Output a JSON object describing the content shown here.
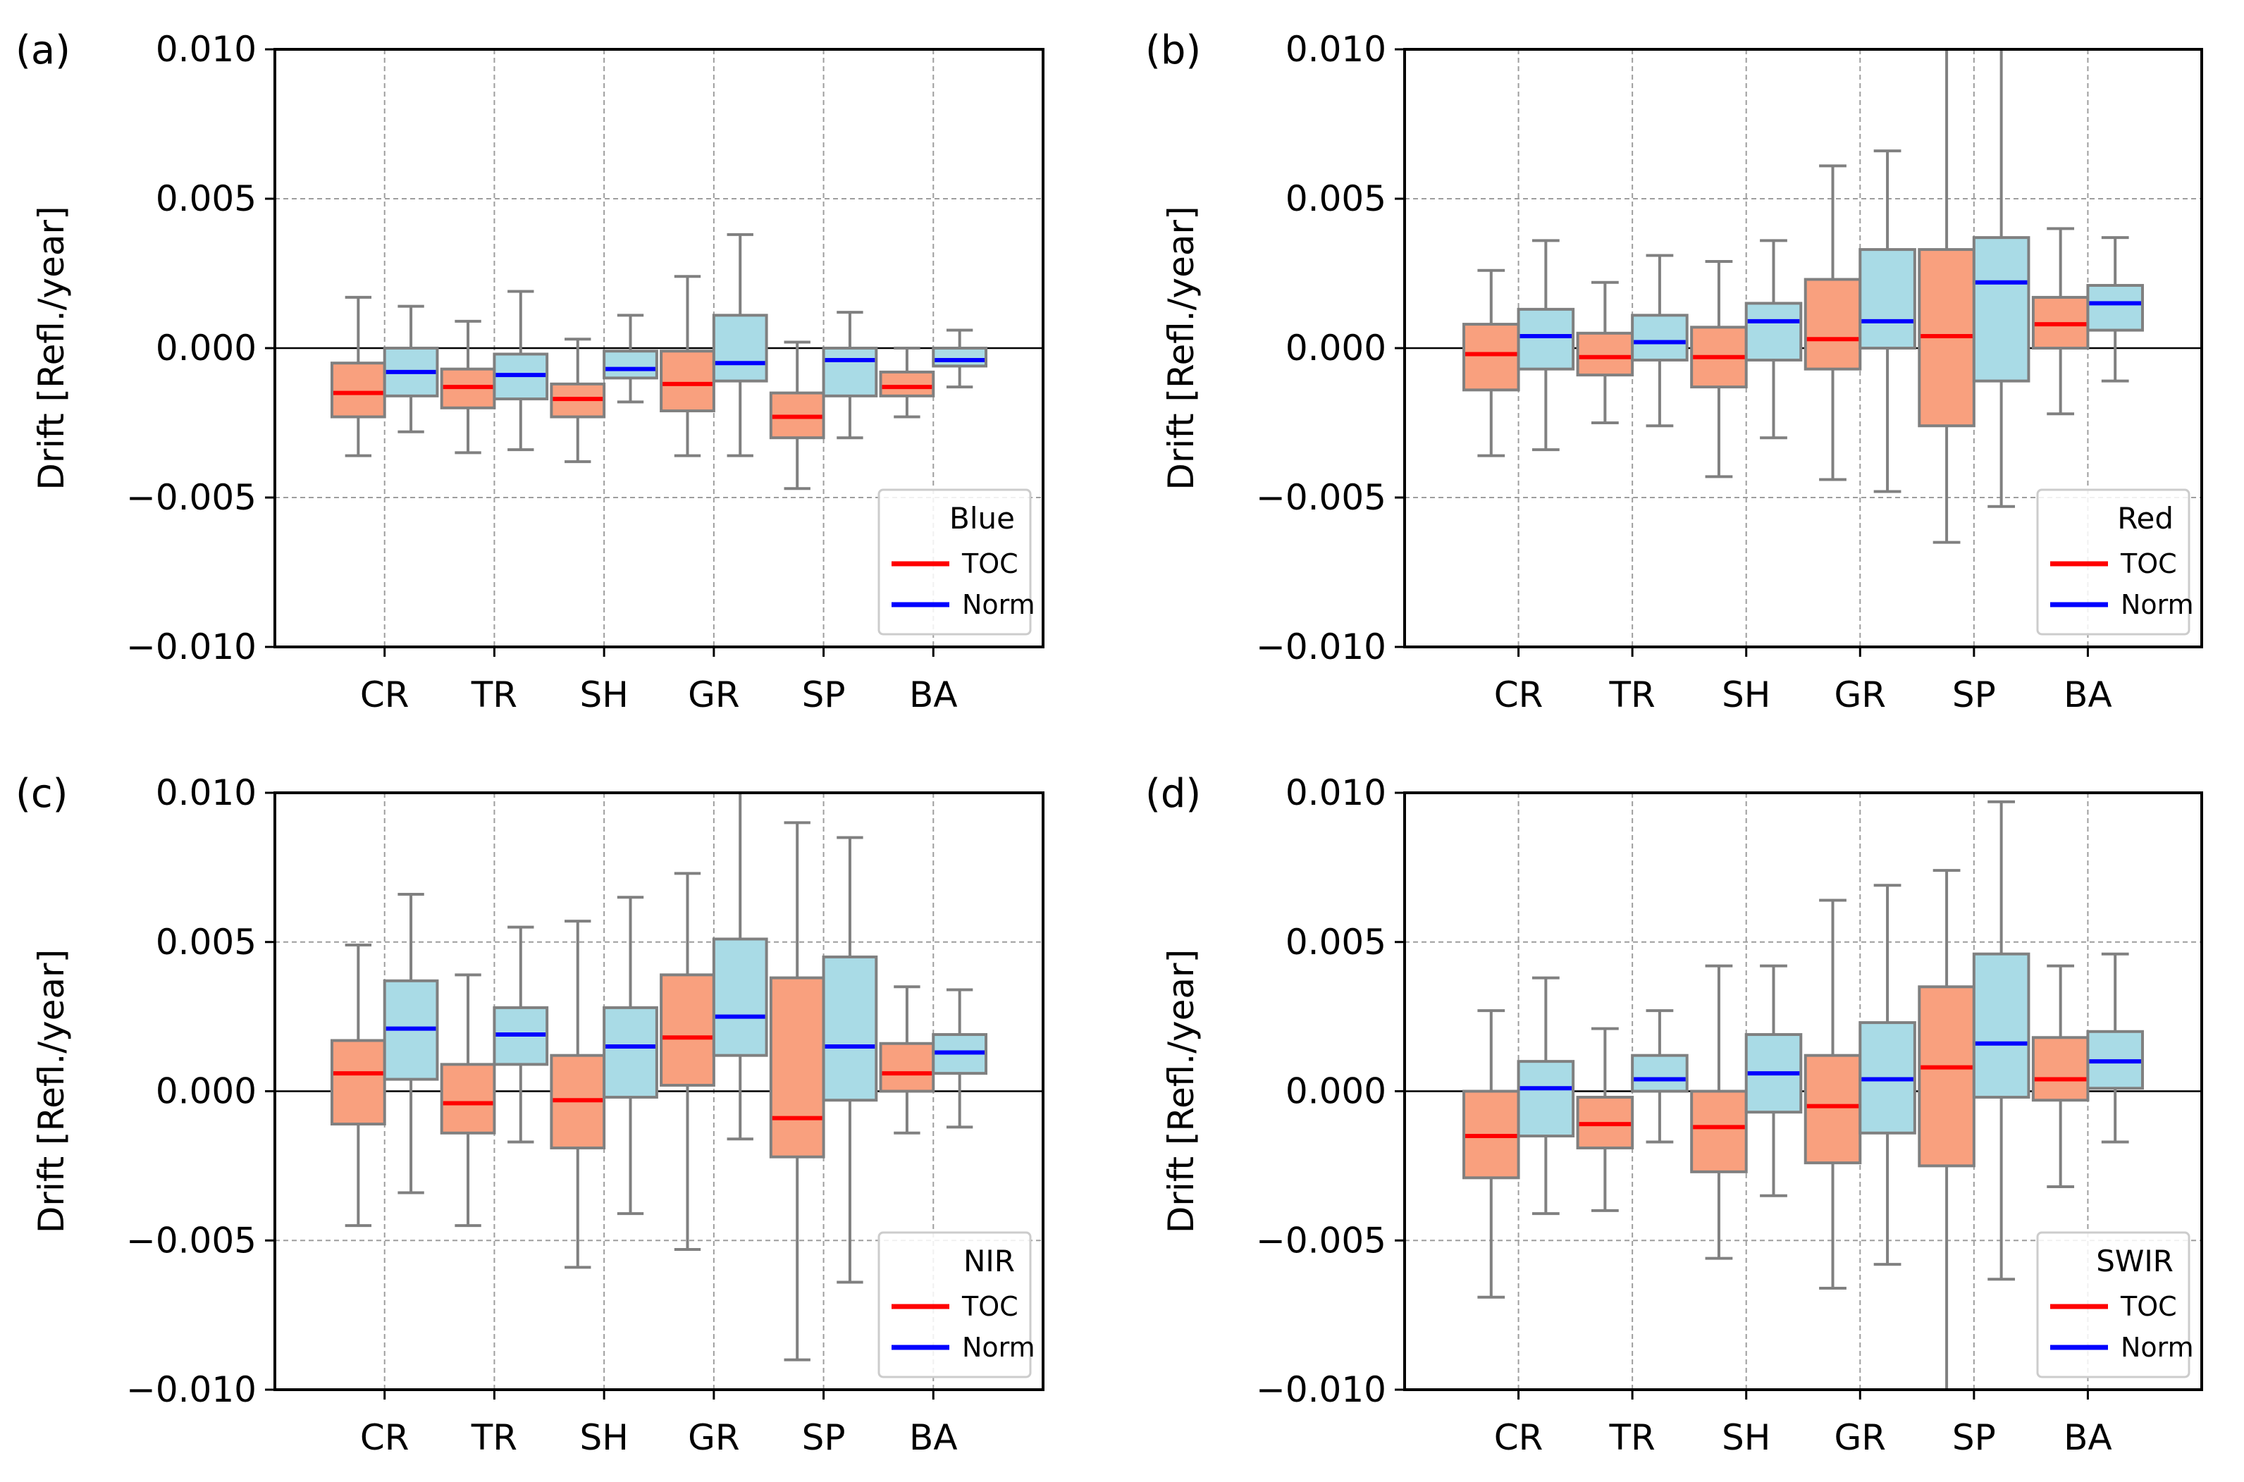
{
  "figure": {
    "ylabel": "Drift [Refl./year]",
    "yticks": [
      0.01,
      0.005,
      0.0,
      -0.005,
      -0.01
    ],
    "ytick_labels": [
      "0.010",
      "0.005",
      "0.000",
      "−0.005",
      "−0.010"
    ],
    "categories": [
      "CR",
      "TR",
      "SH",
      "GR",
      "SP",
      "BA"
    ],
    "legend_entries": [
      "TOC",
      "Norm"
    ],
    "colors": {
      "toc_box": "#f9a07e",
      "norm_box": "#a9dbe6",
      "toc_median": "#ff0000",
      "norm_median": "#0000ff",
      "box_edge": "#808080",
      "grid": "#9e9e9e"
    }
  },
  "chart_data": [
    {
      "type": "box",
      "panel": "(a)",
      "legend_title": "Blue",
      "categories": [
        "CR",
        "TR",
        "SH",
        "GR",
        "SP",
        "BA"
      ],
      "ylim": [
        -0.01,
        0.01
      ],
      "series": [
        {
          "name": "TOC",
          "boxes": [
            {
              "whislo": -0.0036,
              "q1": -0.0023,
              "med": -0.0015,
              "q3": -0.0005,
              "whishi": 0.0017
            },
            {
              "whislo": -0.0035,
              "q1": -0.002,
              "med": -0.0013,
              "q3": -0.0007,
              "whishi": 0.0009
            },
            {
              "whislo": -0.0038,
              "q1": -0.0023,
              "med": -0.0017,
              "q3": -0.0012,
              "whishi": 0.0003
            },
            {
              "whislo": -0.0036,
              "q1": -0.0021,
              "med": -0.0012,
              "q3": -0.0001,
              "whishi": 0.0024
            },
            {
              "whislo": -0.0047,
              "q1": -0.003,
              "med": -0.0023,
              "q3": -0.0015,
              "whishi": 0.0002
            },
            {
              "whislo": -0.0023,
              "q1": -0.0016,
              "med": -0.0013,
              "q3": -0.0008,
              "whishi": 0.0
            }
          ]
        },
        {
          "name": "Norm",
          "boxes": [
            {
              "whislo": -0.0028,
              "q1": -0.0016,
              "med": -0.0008,
              "q3": 0.0,
              "whishi": 0.0014
            },
            {
              "whislo": -0.0034,
              "q1": -0.0017,
              "med": -0.0009,
              "q3": -0.0002,
              "whishi": 0.0019
            },
            {
              "whislo": -0.0018,
              "q1": -0.001,
              "med": -0.0007,
              "q3": -0.0001,
              "whishi": 0.0011
            },
            {
              "whislo": -0.0036,
              "q1": -0.0011,
              "med": -0.0005,
              "q3": 0.0011,
              "whishi": 0.0038
            },
            {
              "whislo": -0.003,
              "q1": -0.0016,
              "med": -0.0004,
              "q3": 0.0,
              "whishi": 0.0012
            },
            {
              "whislo": -0.0013,
              "q1": -0.0006,
              "med": -0.0004,
              "q3": 0.0,
              "whishi": 0.0006
            }
          ]
        }
      ]
    },
    {
      "type": "box",
      "panel": "(b)",
      "legend_title": "Red",
      "categories": [
        "CR",
        "TR",
        "SH",
        "GR",
        "SP",
        "BA"
      ],
      "ylim": [
        -0.01,
        0.01
      ],
      "series": [
        {
          "name": "TOC",
          "boxes": [
            {
              "whislo": -0.0036,
              "q1": -0.0014,
              "med": -0.0002,
              "q3": 0.0008,
              "whishi": 0.0026
            },
            {
              "whislo": -0.0025,
              "q1": -0.0009,
              "med": -0.0003,
              "q3": 0.0005,
              "whishi": 0.0022
            },
            {
              "whislo": -0.0043,
              "q1": -0.0013,
              "med": -0.0003,
              "q3": 0.0007,
              "whishi": 0.0029
            },
            {
              "whislo": -0.0044,
              "q1": -0.0007,
              "med": 0.0003,
              "q3": 0.0023,
              "whishi": 0.0061
            },
            {
              "whislo": -0.0065,
              "q1": -0.0026,
              "med": 0.0004,
              "q3": 0.0033,
              "whishi": 0.01
            },
            {
              "whislo": -0.0022,
              "q1": 0.0,
              "med": 0.0008,
              "q3": 0.0017,
              "whishi": 0.004
            }
          ]
        },
        {
          "name": "Norm",
          "boxes": [
            {
              "whislo": -0.0034,
              "q1": -0.0007,
              "med": 0.0004,
              "q3": 0.0013,
              "whishi": 0.0036
            },
            {
              "whislo": -0.0026,
              "q1": -0.0004,
              "med": 0.0002,
              "q3": 0.0011,
              "whishi": 0.0031
            },
            {
              "whislo": -0.003,
              "q1": -0.0004,
              "med": 0.0009,
              "q3": 0.0015,
              "whishi": 0.0036
            },
            {
              "whislo": -0.0048,
              "q1": 0.0,
              "med": 0.0009,
              "q3": 0.0033,
              "whishi": 0.0066
            },
            {
              "whislo": -0.0053,
              "q1": -0.0011,
              "med": 0.0022,
              "q3": 0.0037,
              "whishi": 0.01
            },
            {
              "whislo": -0.0011,
              "q1": 0.0006,
              "med": 0.0015,
              "q3": 0.0021,
              "whishi": 0.0037
            }
          ]
        }
      ]
    },
    {
      "type": "box",
      "panel": "(c)",
      "legend_title": "NIR",
      "categories": [
        "CR",
        "TR",
        "SH",
        "GR",
        "SP",
        "BA"
      ],
      "ylim": [
        -0.01,
        0.01
      ],
      "series": [
        {
          "name": "TOC",
          "boxes": [
            {
              "whislo": -0.0045,
              "q1": -0.0011,
              "med": 0.0006,
              "q3": 0.0017,
              "whishi": 0.0049
            },
            {
              "whislo": -0.0045,
              "q1": -0.0014,
              "med": -0.0004,
              "q3": 0.0009,
              "whishi": 0.0039
            },
            {
              "whislo": -0.0059,
              "q1": -0.0019,
              "med": -0.0003,
              "q3": 0.0012,
              "whishi": 0.0057
            },
            {
              "whislo": -0.0053,
              "q1": 0.0002,
              "med": 0.0018,
              "q3": 0.0039,
              "whishi": 0.0073
            },
            {
              "whislo": -0.009,
              "q1": -0.0022,
              "med": -0.0009,
              "q3": 0.0038,
              "whishi": 0.009
            },
            {
              "whislo": -0.0014,
              "q1": 0.0,
              "med": 0.0006,
              "q3": 0.0016,
              "whishi": 0.0035
            }
          ]
        },
        {
          "name": "Norm",
          "boxes": [
            {
              "whislo": -0.0034,
              "q1": 0.0004,
              "med": 0.0021,
              "q3": 0.0037,
              "whishi": 0.0066
            },
            {
              "whislo": -0.0017,
              "q1": 0.0009,
              "med": 0.0019,
              "q3": 0.0028,
              "whishi": 0.0055
            },
            {
              "whislo": -0.0041,
              "q1": -0.0002,
              "med": 0.0015,
              "q3": 0.0028,
              "whishi": 0.0065
            },
            {
              "whislo": -0.0016,
              "q1": 0.0012,
              "med": 0.0025,
              "q3": 0.0051,
              "whishi": 0.01
            },
            {
              "whislo": -0.0064,
              "q1": -0.0003,
              "med": 0.0015,
              "q3": 0.0045,
              "whishi": 0.0085
            },
            {
              "whislo": -0.0012,
              "q1": 0.0006,
              "med": 0.0013,
              "q3": 0.0019,
              "whishi": 0.0034
            }
          ]
        }
      ]
    },
    {
      "type": "box",
      "panel": "(d)",
      "legend_title": "SWIR",
      "categories": [
        "CR",
        "TR",
        "SH",
        "GR",
        "SP",
        "BA"
      ],
      "ylim": [
        -0.01,
        0.01
      ],
      "series": [
        {
          "name": "TOC",
          "boxes": [
            {
              "whislo": -0.0069,
              "q1": -0.0029,
              "med": -0.0015,
              "q3": 0.0,
              "whishi": 0.0027
            },
            {
              "whislo": -0.004,
              "q1": -0.0019,
              "med": -0.0011,
              "q3": -0.0002,
              "whishi": 0.0021
            },
            {
              "whislo": -0.0056,
              "q1": -0.0027,
              "med": -0.0012,
              "q3": 0.0,
              "whishi": 0.0042
            },
            {
              "whislo": -0.0066,
              "q1": -0.0024,
              "med": -0.0005,
              "q3": 0.0012,
              "whishi": 0.0064
            },
            {
              "whislo": -0.01,
              "q1": -0.0025,
              "med": 0.0008,
              "q3": 0.0035,
              "whishi": 0.0074
            },
            {
              "whislo": -0.0032,
              "q1": -0.0003,
              "med": 0.0004,
              "q3": 0.0018,
              "whishi": 0.0042
            }
          ]
        },
        {
          "name": "Norm",
          "boxes": [
            {
              "whislo": -0.0041,
              "q1": -0.0015,
              "med": 0.0001,
              "q3": 0.001,
              "whishi": 0.0038
            },
            {
              "whislo": -0.0017,
              "q1": 0.0,
              "med": 0.0004,
              "q3": 0.0012,
              "whishi": 0.0027
            },
            {
              "whislo": -0.0035,
              "q1": -0.0007,
              "med": 0.0006,
              "q3": 0.0019,
              "whishi": 0.0042
            },
            {
              "whislo": -0.0058,
              "q1": -0.0014,
              "med": 0.0004,
              "q3": 0.0023,
              "whishi": 0.0069
            },
            {
              "whislo": -0.0063,
              "q1": -0.0002,
              "med": 0.0016,
              "q3": 0.0046,
              "whishi": 0.0097
            },
            {
              "whislo": -0.0017,
              "q1": 0.0001,
              "med": 0.001,
              "q3": 0.002,
              "whishi": 0.0046
            }
          ]
        }
      ]
    }
  ]
}
